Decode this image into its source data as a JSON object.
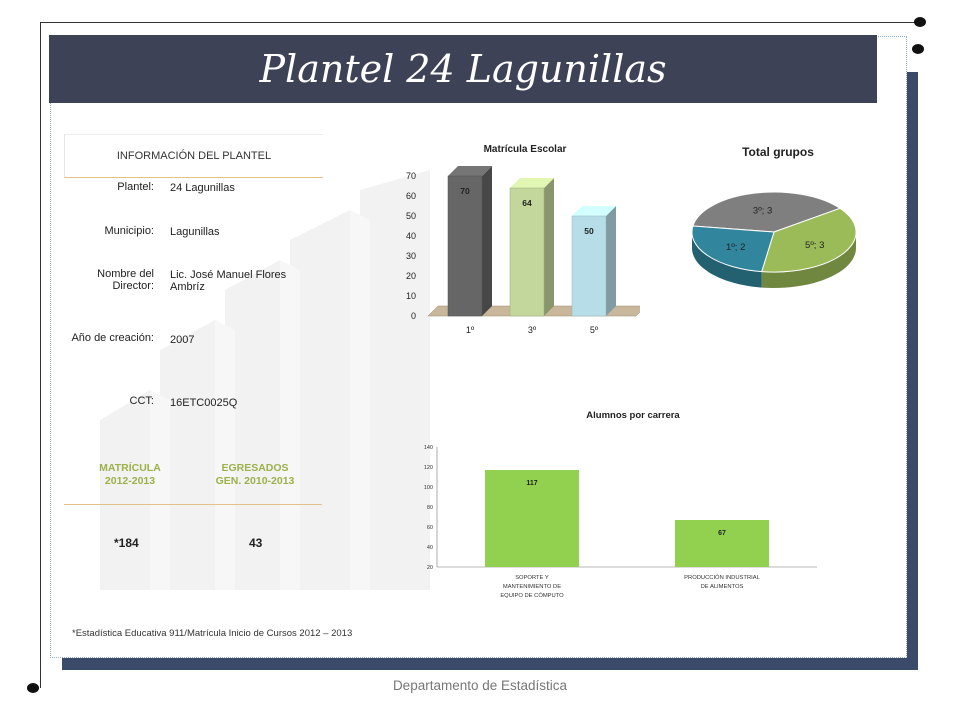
{
  "title": "Plantel 24 Lagunillas",
  "info": {
    "heading": "INFORMACIÓN DEL PLANTEL",
    "rows": [
      {
        "label": "Plantel:",
        "value": "24 Lagunillas"
      },
      {
        "label": "Municipio:",
        "value": "Lagunillas"
      },
      {
        "label": "Nombre del Director:",
        "value": "Lic. José Manuel Flores Ambríz"
      },
      {
        "label": "Año de creación:",
        "value": "2007"
      },
      {
        "label": "CCT:",
        "value": "16ETC0025Q"
      }
    ],
    "matricula_head_1": "MATRÍCULA",
    "matricula_head_2": "2012-2013",
    "egresados_head_1": "EGRESADOS",
    "egresados_head_2": "GEN. 2010-2013",
    "matricula_value": "*184",
    "egresados_value": "43"
  },
  "chart_data": [
    {
      "type": "bar",
      "title": "Matrícula Escolar",
      "categories": [
        "1º",
        "3º",
        "5º"
      ],
      "values": [
        70,
        64,
        50
      ],
      "ylim": [
        0,
        70
      ],
      "yticks": [
        "0",
        "10",
        "20",
        "30",
        "40",
        "50",
        "60",
        "70"
      ],
      "colors": [
        "#666666",
        "#c3d69b",
        "#b7dee8"
      ]
    },
    {
      "type": "pie",
      "title": "Total grupos",
      "labels": [
        "3º; 3",
        "5º; 3",
        "1º; 2"
      ],
      "categories": [
        "3º",
        "5º",
        "1º"
      ],
      "values": [
        3,
        3,
        2
      ],
      "colors": [
        "#7f7f7f",
        "#9bbb59",
        "#31859c"
      ]
    },
    {
      "type": "bar",
      "title": "Alumnos por carrera",
      "categories": [
        [
          "SOPORTE Y",
          "MANTENIMIENTO DE",
          "EQUIPO DE CÓMPUTO"
        ],
        [
          "PRODUCCIÓN INDUSTRIAL",
          "DE ALIMENTOS"
        ]
      ],
      "values": [
        117,
        67
      ],
      "ylim": [
        20,
        140
      ],
      "yticks": [
        "20",
        "40",
        "60",
        "80",
        "100",
        "120",
        "140"
      ],
      "color": "#92d050"
    }
  ],
  "footnote": "*Estadística Educativa 911/Matrícula Inicio de Cursos 2012 – 2013",
  "footer": "Departamento de Estadística"
}
